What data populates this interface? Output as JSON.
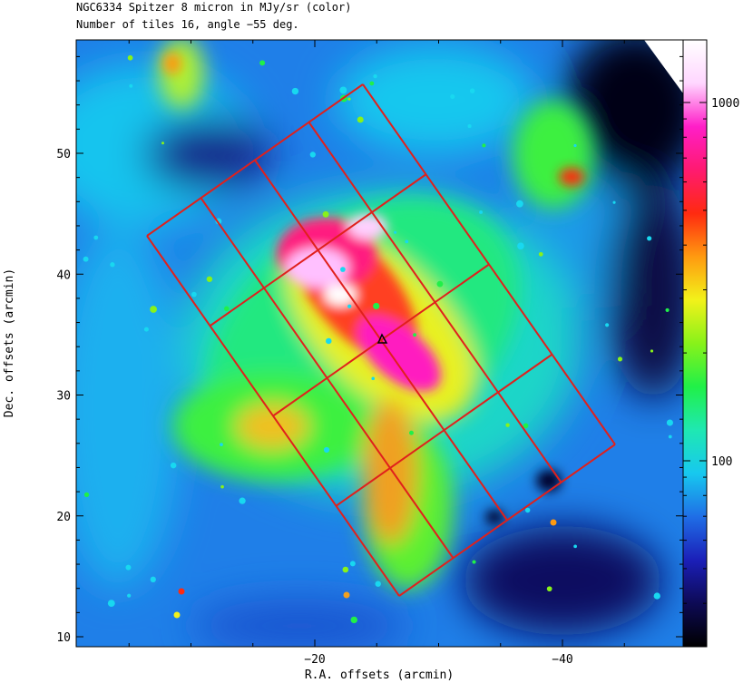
{
  "title_line1": "NGC6334 Spitzer 8 micron in MJy/sr (color)",
  "title_line2": "Number of tiles 16, angle −55 deg.",
  "xlabel": "R.A. offsets (arcmin)",
  "ylabel": "Dec. offsets (arcmin)",
  "x_ticks": [
    {
      "value": -20,
      "label": "−20"
    },
    {
      "value": -40,
      "label": "−40"
    }
  ],
  "y_ticks": [
    {
      "value": 10,
      "label": "10"
    },
    {
      "value": 20,
      "label": "20"
    },
    {
      "value": 30,
      "label": "30"
    },
    {
      "value": 40,
      "label": "40"
    },
    {
      "value": 50,
      "label": "50"
    }
  ],
  "colorbar_ticks": [
    {
      "value": 1000,
      "label": "1000"
    },
    {
      "value": 100,
      "label": "100"
    }
  ],
  "colormap": [
    "#000000",
    "#0d0a55",
    "#1b1fb8",
    "#1f6ee6",
    "#17c8ef",
    "#1fe8b2",
    "#20f048",
    "#88f21a",
    "#f2f21a",
    "#ff9a10",
    "#ff2a10",
    "#ff1a70",
    "#ff1ec8",
    "#ffd6ff",
    "#ffffff"
  ],
  "tile_color": "#e0201c",
  "marker_color": "#000000"
}
